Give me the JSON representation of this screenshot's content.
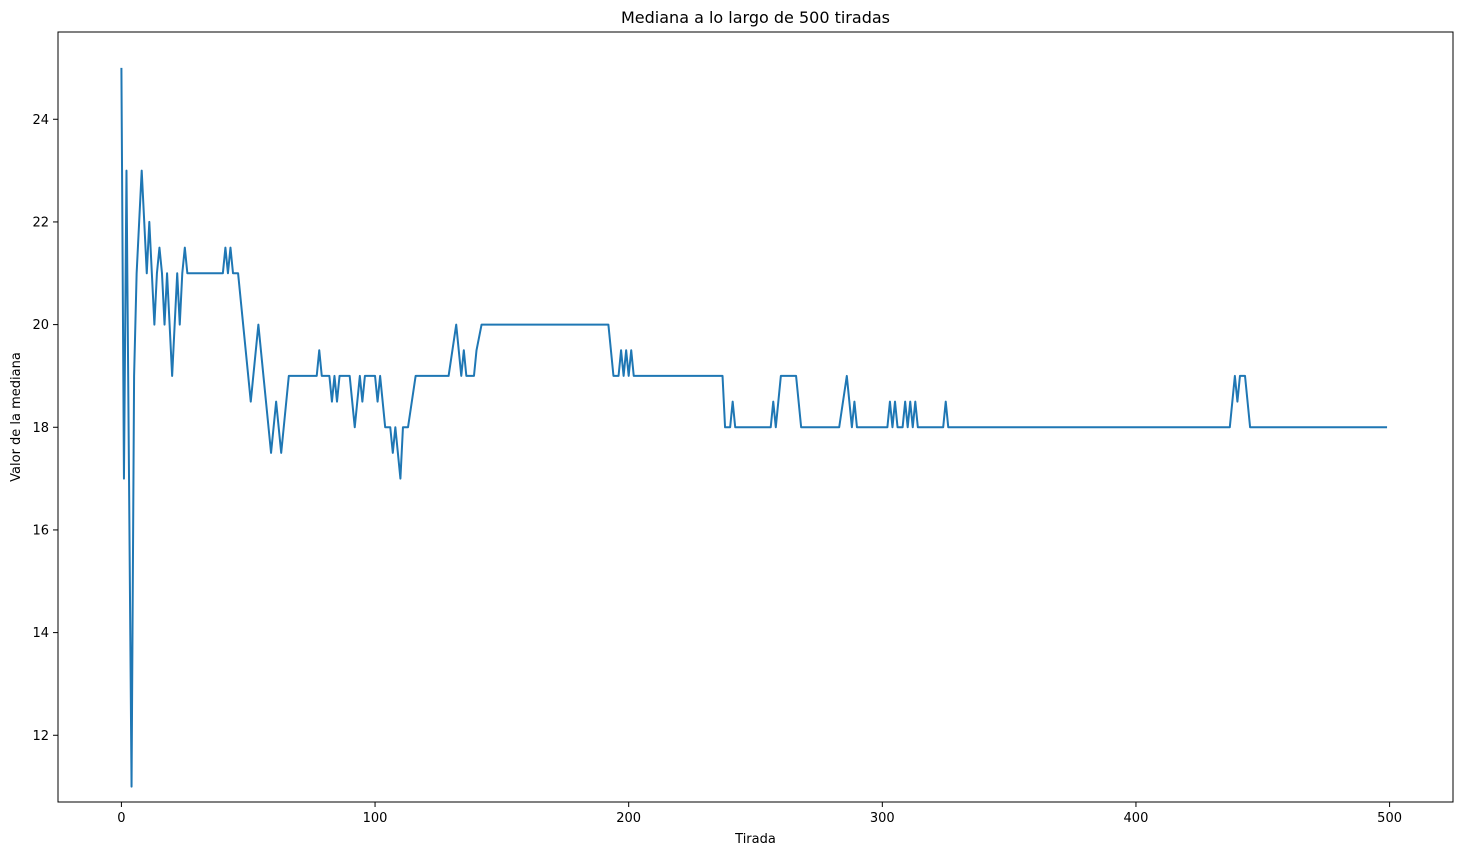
{
  "chart_data": {
    "type": "line",
    "title": "Mediana a lo largo de 500 tiradas",
    "xlabel": "Tirada",
    "ylabel": "Valor de la mediana",
    "xlim": [
      -25,
      525
    ],
    "ylim": [
      10.7,
      25.7
    ],
    "xticks": [
      0,
      100,
      200,
      300,
      400,
      500
    ],
    "yticks": [
      12,
      14,
      16,
      18,
      20,
      22,
      24
    ],
    "grid": false,
    "legend": "none",
    "series": [
      {
        "color": "#1f77b4",
        "points": [
          [
            0,
            25
          ],
          [
            1,
            17
          ],
          [
            2,
            23
          ],
          [
            3,
            17
          ],
          [
            4,
            11
          ],
          [
            5,
            19
          ],
          [
            6,
            21
          ],
          [
            7,
            22
          ],
          [
            8,
            23
          ],
          [
            9,
            22
          ],
          [
            10,
            21
          ],
          [
            11,
            22
          ],
          [
            12,
            21
          ],
          [
            13,
            20
          ],
          [
            14,
            21
          ],
          [
            15,
            21.5
          ],
          [
            16,
            21
          ],
          [
            17,
            20
          ],
          [
            18,
            21
          ],
          [
            19,
            20
          ],
          [
            20,
            19
          ],
          [
            21,
            20
          ],
          [
            22,
            21
          ],
          [
            23,
            20
          ],
          [
            24,
            21
          ],
          [
            25,
            21.5
          ],
          [
            26,
            21
          ],
          [
            40,
            21
          ],
          [
            41,
            21.5
          ],
          [
            42,
            21
          ],
          [
            43,
            21.5
          ],
          [
            44,
            21
          ],
          [
            46,
            21
          ],
          [
            51,
            18.5
          ],
          [
            54,
            20
          ],
          [
            59,
            17.5
          ],
          [
            61,
            18.5
          ],
          [
            63,
            17.5
          ],
          [
            66,
            19
          ],
          [
            77,
            19
          ],
          [
            78,
            19.5
          ],
          [
            79,
            19
          ],
          [
            82,
            19
          ],
          [
            83,
            18.5
          ],
          [
            84,
            19
          ],
          [
            85,
            18.5
          ],
          [
            86,
            19
          ],
          [
            90,
            19
          ],
          [
            92,
            18
          ],
          [
            94,
            19
          ],
          [
            95,
            18.5
          ],
          [
            96,
            19
          ],
          [
            100,
            19
          ],
          [
            101,
            18.5
          ],
          [
            102,
            19
          ],
          [
            104,
            18
          ],
          [
            106,
            18
          ],
          [
            107,
            17.5
          ],
          [
            108,
            18
          ],
          [
            110,
            17
          ],
          [
            111,
            18
          ],
          [
            113,
            18
          ],
          [
            116,
            19
          ],
          [
            129,
            19
          ],
          [
            132,
            20
          ],
          [
            134,
            19
          ],
          [
            135,
            19.5
          ],
          [
            136,
            19
          ],
          [
            139,
            19
          ],
          [
            140,
            19.5
          ],
          [
            142,
            20
          ],
          [
            192,
            20
          ],
          [
            194,
            19
          ],
          [
            196,
            19
          ],
          [
            197,
            19.5
          ],
          [
            198,
            19
          ],
          [
            199,
            19.5
          ],
          [
            200,
            19
          ],
          [
            201,
            19.5
          ],
          [
            202,
            19
          ],
          [
            237,
            19
          ],
          [
            238,
            18
          ],
          [
            240,
            18
          ],
          [
            241,
            18.5
          ],
          [
            242,
            18
          ],
          [
            256,
            18
          ],
          [
            257,
            18.5
          ],
          [
            258,
            18
          ],
          [
            260,
            19
          ],
          [
            266,
            19
          ],
          [
            268,
            18
          ],
          [
            283,
            18
          ],
          [
            286,
            19
          ],
          [
            288,
            18
          ],
          [
            289,
            18.5
          ],
          [
            290,
            18
          ],
          [
            302,
            18
          ],
          [
            303,
            18.5
          ],
          [
            304,
            18
          ],
          [
            305,
            18.5
          ],
          [
            306,
            18
          ],
          [
            308,
            18
          ],
          [
            309,
            18.5
          ],
          [
            310,
            18
          ],
          [
            311,
            18.5
          ],
          [
            312,
            18
          ],
          [
            313,
            18.5
          ],
          [
            314,
            18
          ],
          [
            324,
            18
          ],
          [
            325,
            18.5
          ],
          [
            326,
            18
          ],
          [
            437,
            18
          ],
          [
            439,
            19
          ],
          [
            440,
            18.5
          ],
          [
            441,
            19
          ],
          [
            443,
            19
          ],
          [
            445,
            18
          ],
          [
            499,
            18
          ]
        ]
      }
    ]
  }
}
